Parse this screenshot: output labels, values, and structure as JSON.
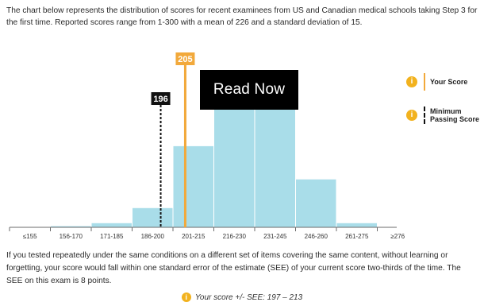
{
  "intro_text": "The chart below represents the distribution of scores for recent examinees from US and Canadian medical schools taking Step 3 for the first time. Reported scores range from 1-300 with a mean of 226 and a standard deviation of 15.",
  "explanation_text": "If you tested repeatedly under the same conditions on a different set of items covering the same content, without learning or forgetting, your score would fall within one standard error of the estimate (SEE) of your current score two-thirds of the time. The SEE on this exam is 8 points.",
  "overlay_button": "Read Now",
  "legend": {
    "icon_glyph": "i",
    "your_score": "Your Score",
    "minimum_passing_line1": "Minimum",
    "minimum_passing_line2": "Passing Score"
  },
  "score_range_text": "Your score +/- SEE: 197 – 213",
  "colors": {
    "bar": "#a9dde9",
    "your_score": "#f2a93b",
    "passing": "#111111",
    "icon": "#f2b21e"
  },
  "chart_data": {
    "type": "bar",
    "title": "",
    "xlabel": "",
    "ylabel": "",
    "categories": [
      "≤155",
      "156-170",
      "171-185",
      "186-200",
      "201-215",
      "216-230",
      "231-245",
      "246-260",
      "261-275",
      "≥276"
    ],
    "values": [
      0.2,
      0.5,
      1.5,
      6.5,
      27,
      45,
      43,
      16,
      1.5,
      0.2
    ],
    "ylim": [
      0,
      50
    ],
    "grid": false,
    "markers": [
      {
        "key": "passing",
        "score": 196,
        "label": "196",
        "style": "dashed"
      },
      {
        "key": "your_score",
        "score": 205,
        "label": "205",
        "style": "solid"
      }
    ]
  }
}
